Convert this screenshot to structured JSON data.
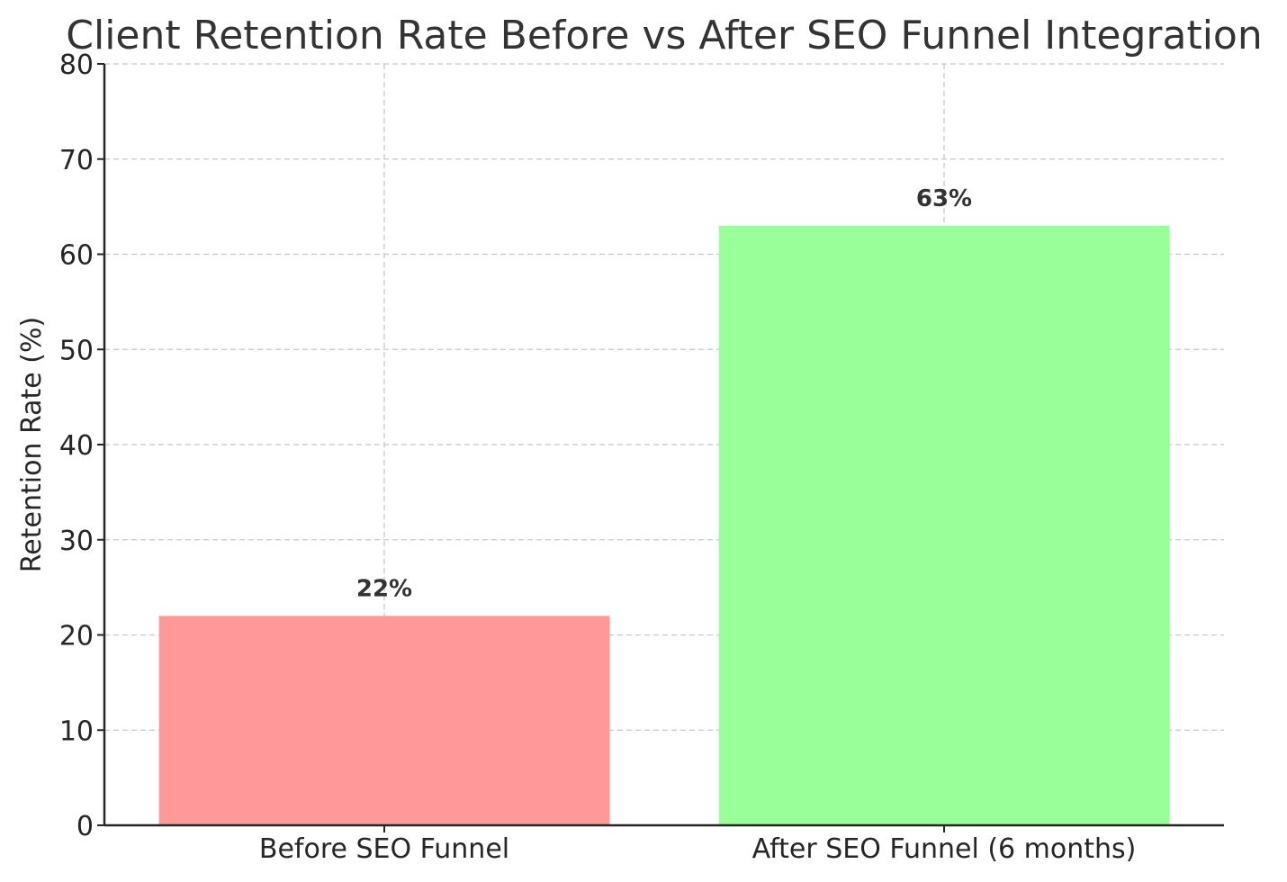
{
  "chart_data": {
    "type": "bar",
    "title": "Client Retention Rate Before vs After SEO Funnel Integration",
    "xlabel": "",
    "ylabel": "Retention Rate (%)",
    "categories": [
      "Before SEO Funnel",
      "After SEO Funnel (6 months)"
    ],
    "values": [
      22,
      63
    ],
    "value_labels": [
      "22%",
      "63%"
    ],
    "colors": [
      "#ff9999",
      "#99ff99"
    ],
    "ylim": [
      0,
      80
    ],
    "yticks": [
      0,
      10,
      20,
      30,
      40,
      50,
      60,
      70,
      80
    ],
    "grid": true,
    "legend": "none"
  }
}
